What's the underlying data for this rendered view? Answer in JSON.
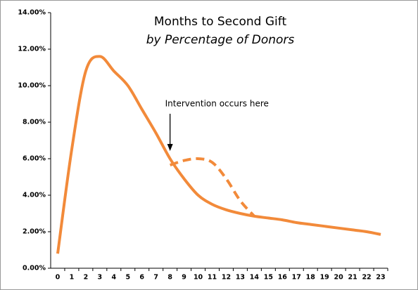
{
  "chart_data": {
    "type": "line",
    "title": "Months to Second Gift",
    "subtitle": "by Percentage of Donors",
    "annotation": "Intervention occurs here",
    "annotation_x": 8,
    "x": [
      0,
      1,
      2,
      3,
      4,
      5,
      6,
      7,
      8,
      9,
      10,
      11,
      12,
      13,
      14,
      15,
      16,
      17,
      18,
      19,
      20,
      21,
      22,
      23
    ],
    "series": [
      {
        "color": "#f28a3a",
        "dashed": false,
        "values": [
          0.8,
          6.5,
          10.8,
          11.6,
          10.8,
          10.0,
          8.7,
          7.4,
          6.0,
          4.9,
          4.0,
          3.5,
          3.2,
          3.0,
          2.85,
          2.75,
          2.65,
          2.5,
          2.4,
          2.3,
          2.2,
          2.1,
          2.0,
          1.85
        ]
      },
      {
        "color": "#f28a3a",
        "dashed": true,
        "values": [
          null,
          null,
          null,
          null,
          null,
          null,
          null,
          null,
          5.65,
          5.9,
          6.0,
          5.8,
          4.9,
          3.7,
          2.85,
          null,
          null,
          null,
          null,
          null,
          null,
          null,
          null,
          null
        ]
      }
    ],
    "xlim": [
      -0.5,
      23.5
    ],
    "xticks": [
      0,
      1,
      2,
      3,
      4,
      5,
      6,
      7,
      8,
      9,
      10,
      11,
      12,
      13,
      14,
      15,
      16,
      17,
      18,
      19,
      20,
      21,
      22,
      23
    ],
    "ylim": [
      0,
      14
    ],
    "yticks": [
      {
        "value": 0,
        "label": "0.00%"
      },
      {
        "value": 2,
        "label": "2.00%"
      },
      {
        "value": 4,
        "label": "4.00%"
      },
      {
        "value": 6,
        "label": "6.00%"
      },
      {
        "value": 8,
        "label": "8.00%"
      },
      {
        "value": 10,
        "label": "10.00%"
      },
      {
        "value": 12,
        "label": "12.00%"
      },
      {
        "value": 14,
        "label": "14.00%"
      }
    ]
  }
}
